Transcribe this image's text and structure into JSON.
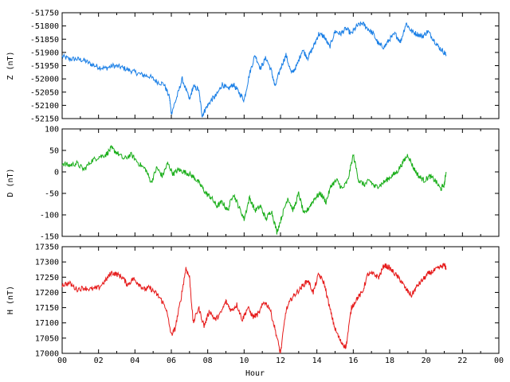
{
  "chart_data": {
    "type": "line",
    "xlabel": "Hour",
    "x_ticks": [
      "00",
      "02",
      "04",
      "06",
      "08",
      "10",
      "12",
      "14",
      "16",
      "18",
      "20",
      "22",
      "00"
    ],
    "xlim": [
      0,
      24
    ],
    "panels": [
      {
        "id": "z",
        "ylabel": "Z (nT)",
        "ylim": [
          -52150,
          -51750
        ],
        "y_ticks": [
          -51750,
          -51800,
          -51850,
          -51900,
          -51950,
          -52000,
          -52050,
          -52100,
          -52150
        ],
        "color": "#1a7fe6",
        "series": {
          "x": [
            0,
            0.4,
            0.8,
            1.2,
            1.6,
            2.0,
            2.4,
            2.8,
            3.2,
            3.6,
            4.0,
            4.4,
            4.8,
            5.2,
            5.6,
            5.9,
            6.0,
            6.3,
            6.6,
            7.0,
            7.2,
            7.5,
            7.7,
            7.9,
            8.2,
            8.5,
            8.8,
            9.1,
            9.4,
            9.7,
            10.0,
            10.3,
            10.6,
            10.9,
            11.2,
            11.5,
            11.7,
            12.0,
            12.3,
            12.6,
            12.9,
            13.2,
            13.5,
            13.8,
            14.1,
            14.4,
            14.7,
            15.0,
            15.3,
            15.6,
            15.9,
            16.2,
            16.5,
            16.8,
            17.1,
            17.4,
            17.7,
            18.0,
            18.3,
            18.6,
            18.9,
            19.2,
            19.5,
            19.8,
            20.1,
            20.4,
            20.7,
            21.0,
            21.1
          ],
          "y": [
            -51915,
            -51925,
            -51925,
            -51930,
            -51945,
            -51955,
            -51960,
            -51950,
            -51955,
            -51965,
            -51975,
            -51985,
            -51990,
            -52010,
            -52020,
            -52070,
            -52130,
            -52070,
            -52000,
            -52080,
            -52030,
            -52040,
            -52140,
            -52110,
            -52080,
            -52060,
            -52020,
            -52040,
            -52020,
            -52050,
            -52080,
            -51980,
            -51910,
            -51960,
            -51920,
            -51970,
            -52030,
            -51960,
            -51910,
            -51980,
            -51950,
            -51890,
            -51920,
            -51880,
            -51830,
            -51840,
            -51880,
            -51820,
            -51830,
            -51810,
            -51830,
            -51800,
            -51790,
            -51810,
            -51830,
            -51870,
            -51880,
            -51850,
            -51830,
            -51860,
            -51790,
            -51820,
            -51830,
            -51840,
            -51820,
            -51850,
            -51880,
            -51900,
            -51910
          ]
        }
      },
      {
        "id": "d",
        "ylabel": "D (nT)",
        "ylim": [
          -150,
          100
        ],
        "y_ticks": [
          100,
          50,
          0,
          -50,
          -100,
          -150
        ],
        "color": "#1aae1a",
        "series": {
          "x": [
            0,
            0.4,
            0.8,
            1.2,
            1.6,
            2.0,
            2.4,
            2.7,
            3.0,
            3.4,
            3.8,
            4.2,
            4.6,
            4.9,
            5.2,
            5.5,
            5.8,
            6.1,
            6.4,
            6.7,
            7.0,
            7.3,
            7.6,
            7.9,
            8.2,
            8.5,
            8.8,
            9.1,
            9.4,
            9.7,
            10.0,
            10.3,
            10.6,
            10.9,
            11.2,
            11.5,
            11.8,
            12.1,
            12.4,
            12.7,
            13.0,
            13.3,
            13.6,
            13.9,
            14.2,
            14.5,
            14.8,
            15.1,
            15.4,
            15.7,
            16.0,
            16.3,
            16.6,
            16.9,
            17.2,
            17.5,
            17.8,
            18.1,
            18.4,
            18.7,
            19.0,
            19.3,
            19.6,
            19.9,
            20.2,
            20.5,
            20.8,
            21.0,
            21.1
          ],
          "y": [
            20,
            15,
            20,
            5,
            25,
            35,
            40,
            55,
            45,
            30,
            40,
            20,
            5,
            -25,
            10,
            -10,
            20,
            -5,
            5,
            0,
            -5,
            -15,
            -30,
            -50,
            -60,
            -80,
            -70,
            -90,
            -50,
            -80,
            -110,
            -60,
            -90,
            -80,
            -110,
            -90,
            -140,
            -100,
            -60,
            -90,
            -50,
            -100,
            -80,
            -60,
            -50,
            -70,
            -30,
            -20,
            -40,
            -20,
            40,
            -20,
            -30,
            -20,
            -35,
            -30,
            -20,
            -10,
            0,
            20,
            40,
            10,
            -10,
            -20,
            -10,
            -20,
            -40,
            -30,
            0
          ]
        }
      },
      {
        "id": "h",
        "ylabel": "H (nT)",
        "ylim": [
          17000,
          17350
        ],
        "y_ticks": [
          17350,
          17300,
          17250,
          17200,
          17150,
          17100,
          17050,
          17000
        ],
        "color": "#e61a1a",
        "series": {
          "x": [
            0,
            0.4,
            0.8,
            1.2,
            1.6,
            2.0,
            2.4,
            2.7,
            3.0,
            3.3,
            3.6,
            3.9,
            4.2,
            4.5,
            4.8,
            5.1,
            5.4,
            5.7,
            6.0,
            6.2,
            6.5,
            6.8,
            7.0,
            7.2,
            7.5,
            7.8,
            8.1,
            8.4,
            8.7,
            9.0,
            9.3,
            9.6,
            9.9,
            10.2,
            10.5,
            10.8,
            11.1,
            11.4,
            11.7,
            12.0,
            12.3,
            12.6,
            12.9,
            13.2,
            13.5,
            13.8,
            14.1,
            14.4,
            14.7,
            15.0,
            15.3,
            15.6,
            15.9,
            16.2,
            16.5,
            16.8,
            17.1,
            17.4,
            17.7,
            18.0,
            18.3,
            18.6,
            18.9,
            19.2,
            19.5,
            19.8,
            20.1,
            20.4,
            20.7,
            21.0,
            21.1
          ],
          "y": [
            17225,
            17230,
            17210,
            17215,
            17210,
            17215,
            17240,
            17265,
            17260,
            17250,
            17225,
            17245,
            17230,
            17210,
            17215,
            17200,
            17180,
            17150,
            17060,
            17080,
            17170,
            17280,
            17250,
            17100,
            17150,
            17090,
            17140,
            17110,
            17130,
            17170,
            17140,
            17160,
            17110,
            17150,
            17120,
            17130,
            17170,
            17150,
            17080,
            17000,
            17140,
            17180,
            17200,
            17220,
            17240,
            17200,
            17260,
            17230,
            17150,
            17080,
            17040,
            17020,
            17150,
            17180,
            17200,
            17260,
            17260,
            17250,
            17290,
            17280,
            17260,
            17240,
            17210,
            17190,
            17220,
            17240,
            17260,
            17270,
            17280,
            17290,
            17280
          ]
        }
      }
    ]
  }
}
